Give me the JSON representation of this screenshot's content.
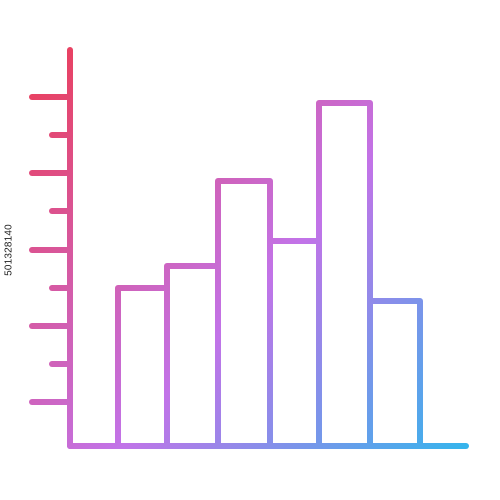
{
  "icon": {
    "name": "bar-chart-icon",
    "style": "gradient-outline",
    "gradient_colors": [
      "#ea3f5c",
      "#c273e8",
      "#36b4ec"
    ],
    "bar_levels": [
      0.44,
      0.48,
      0.6,
      0.46,
      0.78,
      0.33
    ]
  },
  "stock_id": "501328140"
}
